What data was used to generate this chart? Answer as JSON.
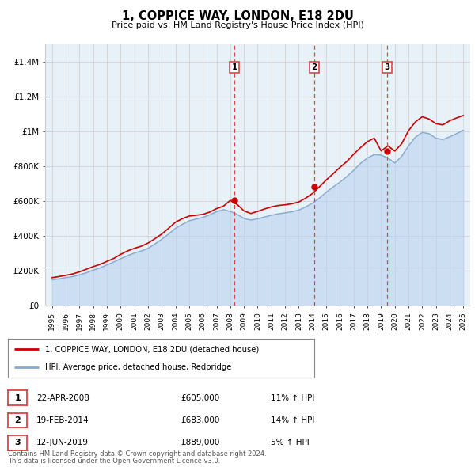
{
  "title": "1, COPPICE WAY, LONDON, E18 2DU",
  "subtitle": "Price paid vs. HM Land Registry's House Price Index (HPI)",
  "legend_line1": "1, COPPICE WAY, LONDON, E18 2DU (detached house)",
  "legend_line2": "HPI: Average price, detached house, Redbridge",
  "footnote1": "Contains HM Land Registry data © Crown copyright and database right 2024.",
  "footnote2": "This data is licensed under the Open Government Licence v3.0.",
  "sales": [
    {
      "num": 1,
      "date": "22-APR-2008",
      "price": "£605,000",
      "hpi": "11% ↑ HPI",
      "year": 2008.3
    },
    {
      "num": 2,
      "date": "19-FEB-2014",
      "price": "£683,000",
      "hpi": "14% ↑ HPI",
      "year": 2014.13
    },
    {
      "num": 3,
      "date": "12-JUN-2019",
      "price": "£889,000",
      "hpi": "5% ↑ HPI",
      "year": 2019.45
    }
  ],
  "sale_prices": [
    605000,
    683000,
    889000
  ],
  "ylim": [
    0,
    1500000
  ],
  "yticks": [
    0,
    200000,
    400000,
    600000,
    800000,
    1000000,
    1200000,
    1400000
  ],
  "ytick_labels": [
    "£0",
    "£200K",
    "£400K",
    "£600K",
    "£800K",
    "£1M",
    "£1.2M",
    "£1.4M"
  ],
  "xlim_start": 1994.5,
  "xlim_end": 2025.5,
  "xtick_years": [
    1995,
    1996,
    1997,
    1998,
    1999,
    2000,
    2001,
    2002,
    2003,
    2004,
    2005,
    2006,
    2007,
    2008,
    2009,
    2010,
    2011,
    2012,
    2013,
    2014,
    2015,
    2016,
    2017,
    2018,
    2019,
    2020,
    2021,
    2022,
    2023,
    2024,
    2025
  ],
  "red_color": "#cc0000",
  "blue_color": "#aaccee",
  "blue_line_color": "#88aacc",
  "vline_color": "#dd4444",
  "grid_color": "#cccccc",
  "bg_color": "#e8f0f8",
  "hpi_x": [
    1995,
    1995.5,
    1996,
    1996.5,
    1997,
    1997.5,
    1998,
    1998.5,
    1999,
    1999.5,
    2000,
    2000.5,
    2001,
    2001.5,
    2002,
    2002.5,
    2003,
    2003.5,
    2004,
    2004.5,
    2005,
    2005.5,
    2006,
    2006.5,
    2007,
    2007.5,
    2008,
    2008.5,
    2009,
    2009.5,
    2010,
    2010.5,
    2011,
    2011.5,
    2012,
    2012.5,
    2013,
    2013.5,
    2014,
    2014.5,
    2015,
    2015.5,
    2016,
    2016.5,
    2017,
    2017.5,
    2018,
    2018.5,
    2019,
    2019.5,
    2020,
    2020.5,
    2021,
    2021.5,
    2022,
    2022.5,
    2023,
    2023.5,
    2024,
    2024.5,
    2025
  ],
  "hpi_y": [
    150000,
    155000,
    162000,
    168000,
    178000,
    190000,
    205000,
    218000,
    235000,
    252000,
    270000,
    288000,
    303000,
    315000,
    330000,
    355000,
    382000,
    412000,
    445000,
    468000,
    488000,
    498000,
    508000,
    522000,
    540000,
    552000,
    542000,
    525000,
    502000,
    492000,
    500000,
    510000,
    520000,
    528000,
    534000,
    540000,
    550000,
    568000,
    590000,
    618000,
    652000,
    682000,
    710000,
    742000,
    778000,
    818000,
    848000,
    868000,
    865000,
    848000,
    820000,
    858000,
    918000,
    968000,
    995000,
    988000,
    962000,
    954000,
    970000,
    988000,
    1008000
  ],
  "red_x": [
    1995,
    1995.5,
    1996,
    1996.5,
    1997,
    1997.5,
    1998,
    1998.5,
    1999,
    1999.5,
    2000,
    2000.5,
    2001,
    2001.5,
    2002,
    2002.5,
    2003,
    2003.5,
    2004,
    2004.5,
    2005,
    2005.5,
    2006,
    2006.5,
    2007,
    2007.5,
    2008,
    2008.5,
    2009,
    2009.5,
    2010,
    2010.5,
    2011,
    2011.5,
    2012,
    2012.5,
    2013,
    2013.5,
    2014,
    2014.5,
    2015,
    2015.5,
    2016,
    2016.5,
    2017,
    2017.5,
    2018,
    2018.5,
    2019,
    2019.5,
    2020,
    2020.5,
    2021,
    2021.5,
    2022,
    2022.5,
    2023,
    2023.5,
    2024,
    2024.5,
    2025
  ],
  "red_y": [
    162000,
    168000,
    175000,
    183000,
    195000,
    210000,
    225000,
    238000,
    255000,
    272000,
    295000,
    315000,
    330000,
    342000,
    360000,
    385000,
    412000,
    445000,
    480000,
    500000,
    515000,
    520000,
    525000,
    538000,
    558000,
    572000,
    605000,
    582000,
    545000,
    530000,
    542000,
    556000,
    568000,
    576000,
    580000,
    586000,
    596000,
    618000,
    645000,
    683000,
    722000,
    758000,
    795000,
    828000,
    870000,
    908000,
    942000,
    962000,
    889000,
    918000,
    888000,
    930000,
    1005000,
    1055000,
    1085000,
    1072000,
    1045000,
    1038000,
    1062000,
    1078000,
    1092000
  ]
}
